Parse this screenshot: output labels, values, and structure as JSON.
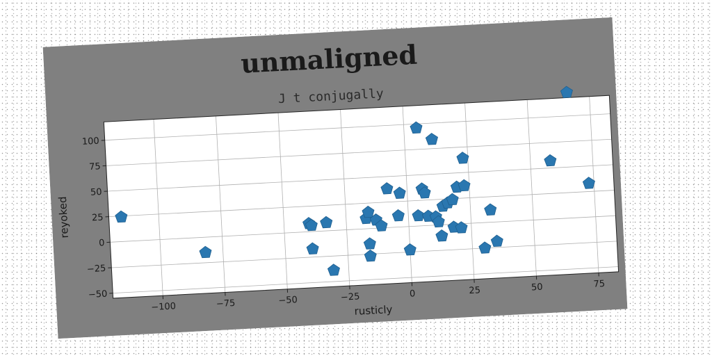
{
  "title": "unmaligned",
  "subtitle": "J t conjugally",
  "colors": {
    "figure_bg": "#808080",
    "plot_bg": "#ffffff",
    "marker": "#2a77b0",
    "grid": "#b0b0b0",
    "text": "#1a1a1a"
  },
  "chart_data": {
    "type": "scatter",
    "title": "unmaligned",
    "subtitle": "J t conjugally",
    "xlabel": "rusticly",
    "ylabel": "reyoked",
    "xlim": [
      -120,
      83
    ],
    "ylim": [
      -55,
      118
    ],
    "xticks": [
      -100,
      -75,
      -50,
      -25,
      0,
      25,
      50,
      75
    ],
    "yticks": [
      -50,
      -25,
      0,
      25,
      50,
      75,
      100
    ],
    "xtick_labels": [
      "−100",
      "−75",
      "−50",
      "−25",
      "0",
      "25",
      "50",
      "75"
    ],
    "ytick_labels": [
      "−50",
      "−25",
      "0",
      "25",
      "50",
      "75",
      "100"
    ],
    "marker": "pentagon",
    "grid": true,
    "points": [
      {
        "x": -115,
        "y": 24
      },
      {
        "x": -82,
        "y": -15
      },
      {
        "x": -40,
        "y": 8
      },
      {
        "x": -39,
        "y": 6
      },
      {
        "x": -33,
        "y": 8
      },
      {
        "x": -39,
        "y": -17
      },
      {
        "x": -31,
        "y": -39
      },
      {
        "x": -17,
        "y": 10
      },
      {
        "x": -16,
        "y": 16
      },
      {
        "x": -13,
        "y": 8
      },
      {
        "x": -11,
        "y": 2
      },
      {
        "x": -16,
        "y": -15
      },
      {
        "x": -16,
        "y": -27
      },
      {
        "x": -8,
        "y": 38
      },
      {
        "x": -3,
        "y": 33
      },
      {
        "x": -4,
        "y": 11
      },
      {
        "x": 0,
        "y": -23
      },
      {
        "x": 4,
        "y": 10
      },
      {
        "x": 6,
        "y": 36
      },
      {
        "x": 7,
        "y": 32
      },
      {
        "x": 5,
        "y": 96
      },
      {
        "x": 11,
        "y": 84
      },
      {
        "x": 8,
        "y": 9
      },
      {
        "x": 11,
        "y": 8
      },
      {
        "x": 12,
        "y": 3
      },
      {
        "x": 13,
        "y": -11
      },
      {
        "x": 14,
        "y": 18
      },
      {
        "x": 16,
        "y": 21
      },
      {
        "x": 18,
        "y": 24
      },
      {
        "x": 18,
        "y": -3
      },
      {
        "x": 21,
        "y": -4
      },
      {
        "x": 20,
        "y": 36
      },
      {
        "x": 23,
        "y": 37
      },
      {
        "x": 23,
        "y": 64
      },
      {
        "x": 30,
        "y": -25
      },
      {
        "x": 33,
        "y": 12
      },
      {
        "x": 35,
        "y": -19
      },
      {
        "x": 58,
        "y": 57
      },
      {
        "x": 66,
        "y": 123
      },
      {
        "x": 73,
        "y": 33
      }
    ]
  }
}
